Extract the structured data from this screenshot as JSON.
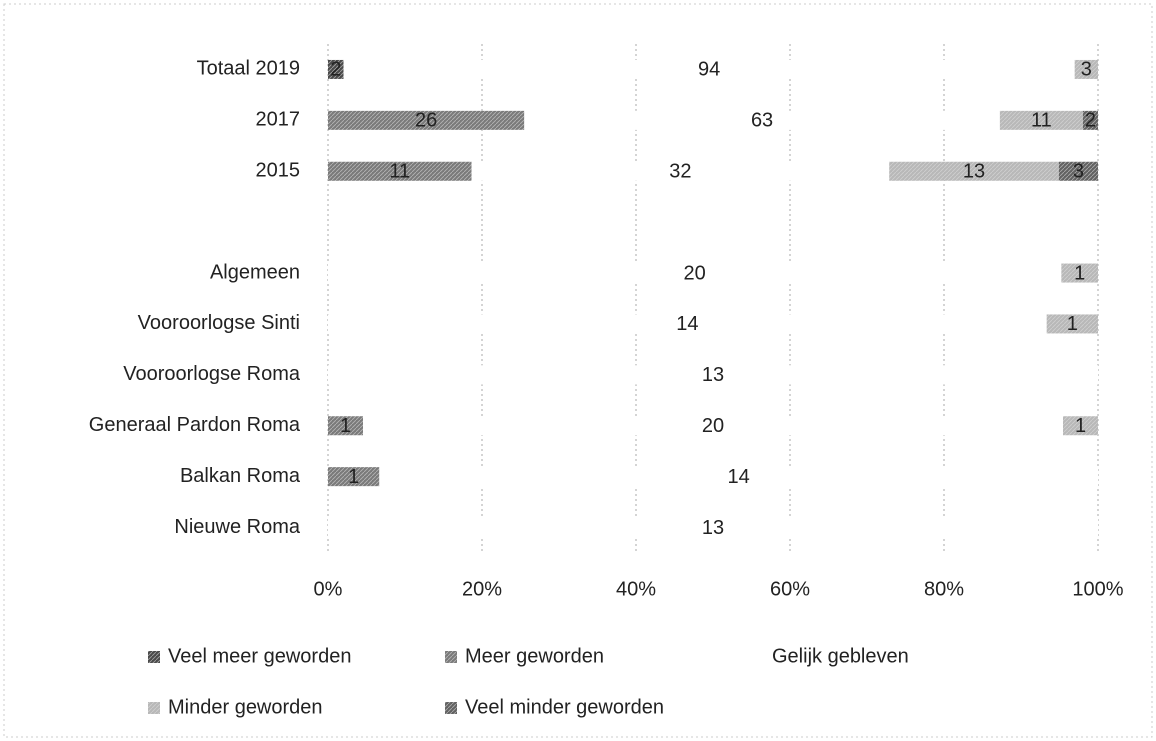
{
  "chart_data": {
    "type": "bar",
    "orientation": "horizontal",
    "stack": "percent",
    "categories": [
      "Totaal 2019",
      "2017",
      "2015",
      null,
      "Algemeen",
      "Vooroorlogse Sinti",
      "Vooroorlogse Roma",
      "Generaal Pardon Roma",
      "Balkan Roma",
      "Nieuwe Roma"
    ],
    "series": [
      {
        "name": "Veel meer geworden",
        "color": "#4a4a4a",
        "values": [
          2,
          null,
          null,
          null,
          null,
          null,
          null,
          null,
          null,
          null
        ]
      },
      {
        "name": "Meer geworden",
        "color": "#7a7a7a",
        "values": [
          null,
          26,
          11,
          null,
          null,
          null,
          null,
          1,
          1,
          null
        ]
      },
      {
        "name": "Gelijk gebleven",
        "color": "#ffffff",
        "values": [
          94,
          63,
          32,
          null,
          20,
          14,
          13,
          20,
          14,
          13
        ]
      },
      {
        "name": "Minder geworden",
        "color": "#b8b8b8",
        "values": [
          3,
          11,
          13,
          null,
          1,
          1,
          null,
          1,
          null,
          null
        ]
      },
      {
        "name": "Veel minder geworden",
        "color": "#626262",
        "values": [
          null,
          2,
          3,
          null,
          null,
          null,
          null,
          null,
          null,
          null
        ]
      }
    ],
    "xlim": [
      0,
      100
    ],
    "xticks": [
      {
        "value": 0,
        "label": "0%"
      },
      {
        "value": 20,
        "label": "20%"
      },
      {
        "value": 40,
        "label": "40%"
      },
      {
        "value": 60,
        "label": "60%"
      },
      {
        "value": 80,
        "label": "80%"
      },
      {
        "value": 100,
        "label": "100%"
      }
    ],
    "grid": true,
    "legend": "bottom"
  }
}
